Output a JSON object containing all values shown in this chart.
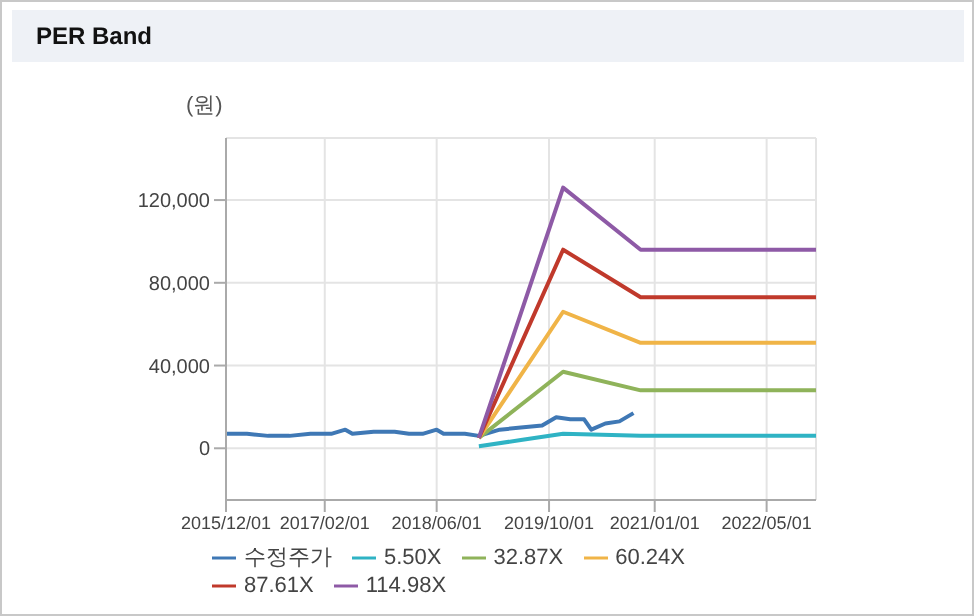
{
  "chart_data": {
    "type": "line",
    "title": "PER Band",
    "ylabel": "(원)",
    "legend": "bottom",
    "grid": true,
    "marker": "none",
    "line_style": "solid",
    "xlim": [
      "2015-12-01",
      "2022-12-01"
    ],
    "xticks": [
      {
        "value": "2015-12-01",
        "label": "2015/12/01"
      },
      {
        "value": "2017-02-01",
        "label": "2017/02/01"
      },
      {
        "value": "2018-06-01",
        "label": "2018/06/01"
      },
      {
        "value": "2019-10-01",
        "label": "2019/10/01"
      },
      {
        "value": "2021-01-01",
        "label": "2021/01/01"
      },
      {
        "value": "2022-05-01",
        "label": "2022/05/01"
      }
    ],
    "ylim": [
      -25000,
      150000
    ],
    "yticks": [
      {
        "value": 0,
        "label": "0"
      },
      {
        "value": 40000,
        "label": "40,000"
      },
      {
        "value": 80000,
        "label": "80,000"
      },
      {
        "value": 120000,
        "label": "120,000"
      }
    ],
    "series": [
      {
        "name": "수정주가",
        "color": "#3f78b5",
        "x": [
          "2015-12-01",
          "2016-03-01",
          "2016-06-01",
          "2016-09-01",
          "2016-12-01",
          "2017-03-01",
          "2017-05-01",
          "2017-06-01",
          "2017-09-01",
          "2017-12-01",
          "2018-02-01",
          "2018-04-01",
          "2018-06-01",
          "2018-07-01",
          "2018-10-01",
          "2018-12-01",
          "2019-03-01",
          "2019-06-01",
          "2019-09-01",
          "2019-11-01",
          "2020-01-01",
          "2020-03-01",
          "2020-04-01",
          "2020-06-01",
          "2020-08-01",
          "2020-10-01"
        ],
        "values": [
          7000,
          7000,
          6000,
          6000,
          7000,
          7000,
          9000,
          7000,
          8000,
          8000,
          7000,
          7000,
          9000,
          7000,
          7000,
          6000,
          9000,
          10000,
          11000,
          15000,
          14000,
          14000,
          9000,
          12000,
          13000,
          17000
        ]
      },
      {
        "name": "5.50X",
        "color": "#2fb3c4",
        "x": [
          "2018-12-01",
          "2019-06-01",
          "2019-12-01",
          "2020-11-01",
          "2022-12-01"
        ],
        "values": [
          1000,
          4000,
          7000,
          6000,
          6000
        ]
      },
      {
        "name": "32.87X",
        "color": "#8fb35a",
        "x": [
          "2018-12-01",
          "2019-12-01",
          "2020-11-01",
          "2022-12-01"
        ],
        "values": [
          5000,
          37000,
          28000,
          28000
        ]
      },
      {
        "name": "60.24X",
        "color": "#f0b447",
        "x": [
          "2018-12-01",
          "2019-12-01",
          "2020-11-01",
          "2022-12-01"
        ],
        "values": [
          5000,
          66000,
          51000,
          51000
        ]
      },
      {
        "name": "87.61X",
        "color": "#c0392b",
        "x": [
          "2018-12-01",
          "2019-12-01",
          "2020-11-01",
          "2022-12-01"
        ],
        "values": [
          5000,
          96000,
          73000,
          73000
        ]
      },
      {
        "name": "114.98X",
        "color": "#8e5aa6",
        "x": [
          "2018-12-01",
          "2019-12-01",
          "2020-11-01",
          "2022-12-01"
        ],
        "values": [
          5000,
          126000,
          96000,
          96000
        ]
      }
    ]
  }
}
